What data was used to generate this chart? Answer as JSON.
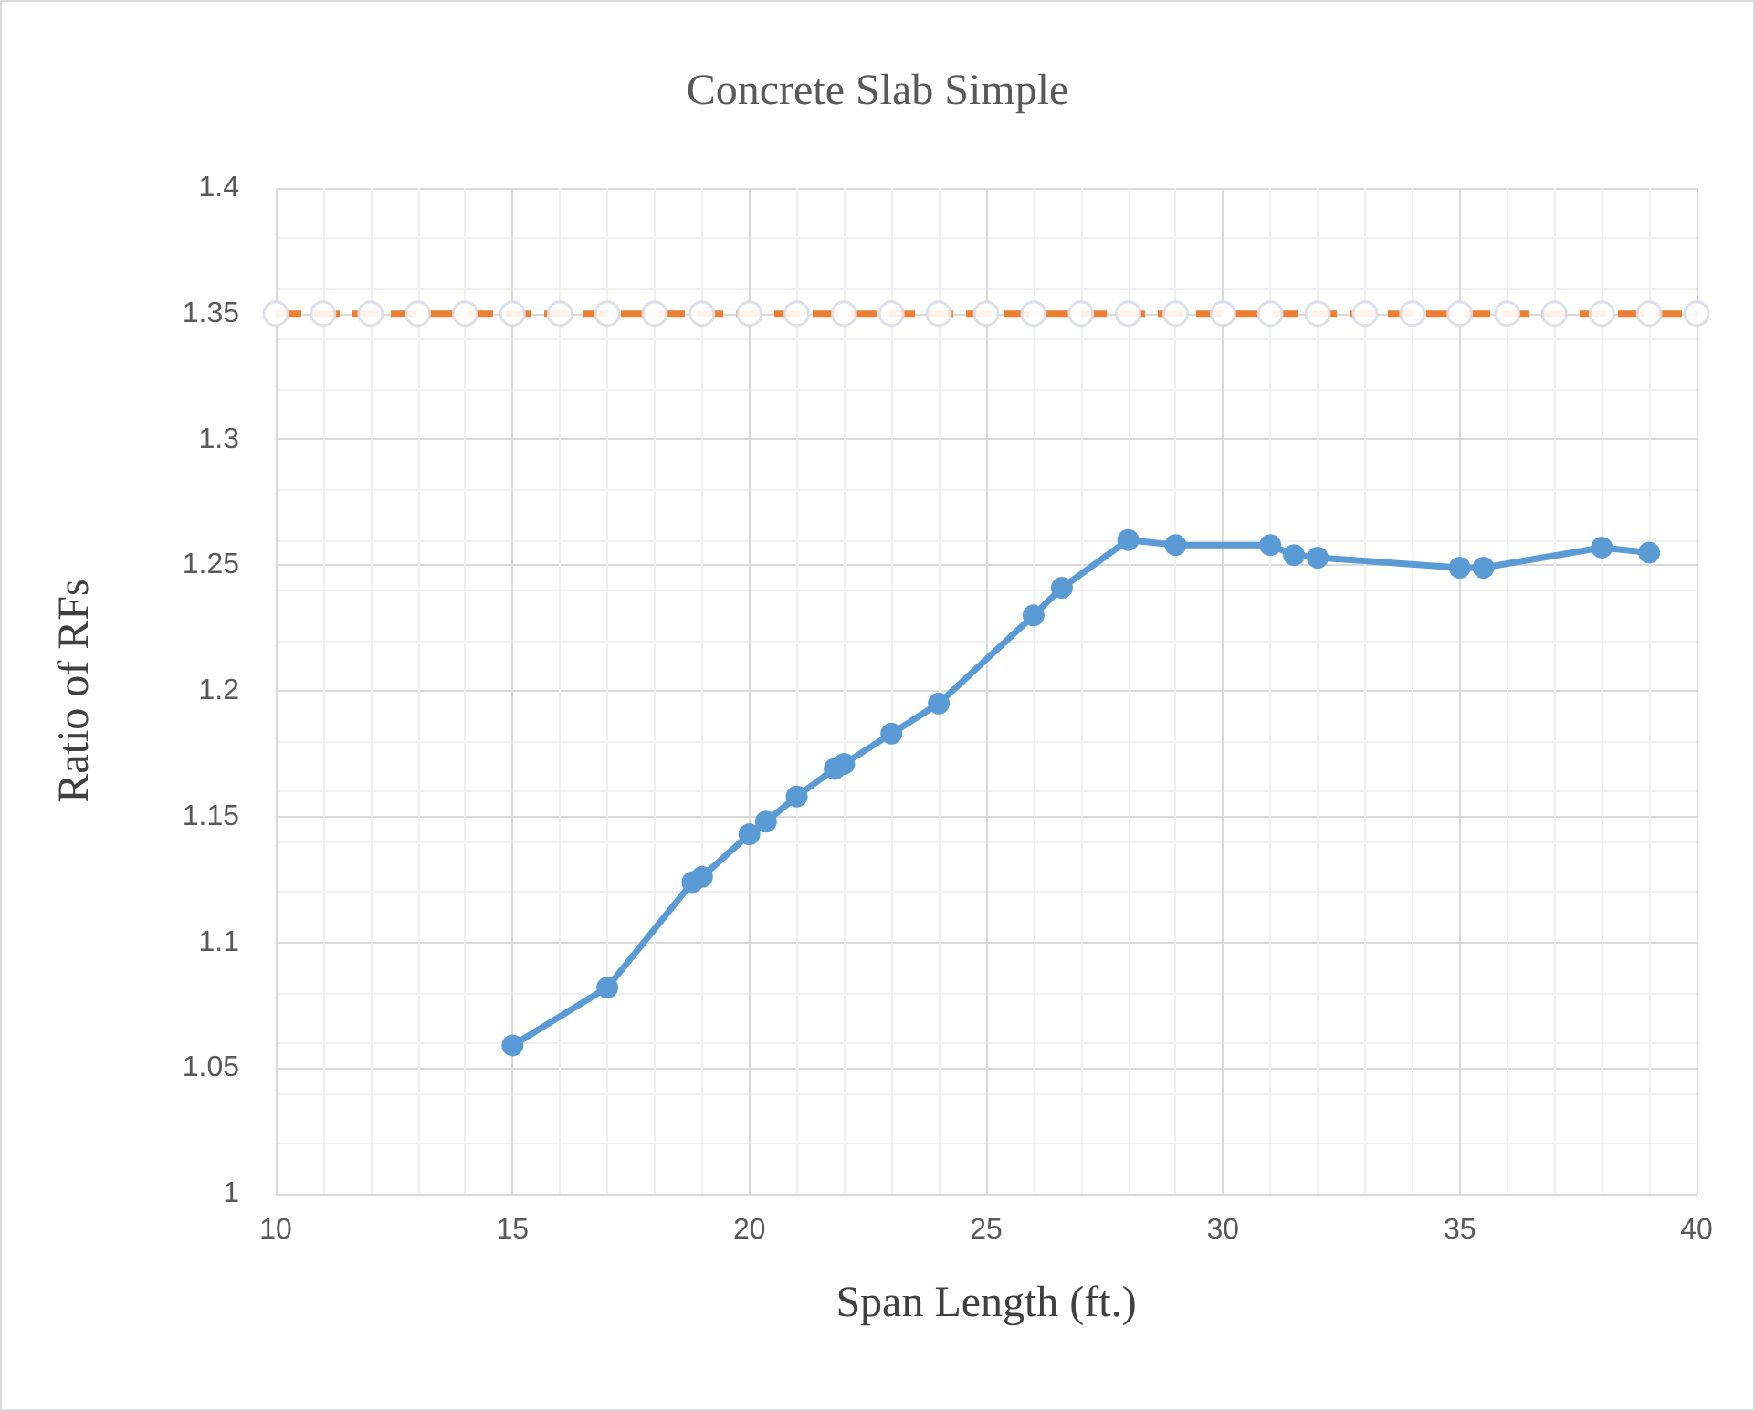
{
  "chart_data": {
    "type": "line",
    "title": "Concrete Slab Simple",
    "xlabel": "Span Length (ft.)",
    "ylabel": "Ratio of RFs",
    "xlim": [
      10,
      40
    ],
    "xticks": [
      10,
      15,
      20,
      25,
      30,
      35,
      40
    ],
    "ylim": [
      1,
      1.4
    ],
    "yticks": [
      1,
      1.05,
      1.1,
      1.15,
      1.2,
      1.25,
      1.3,
      1.35,
      1.4
    ],
    "grid": true,
    "series": [
      {
        "color": "#5b9bd5",
        "marker": "circle",
        "line_style": "solid",
        "x": [
          15,
          17,
          18.8,
          19,
          20,
          20.35,
          21,
          21.8,
          22,
          23,
          24,
          26,
          26.6,
          28,
          29,
          31,
          31.5,
          32,
          35,
          35.5,
          38,
          39
        ],
        "values": [
          1.059,
          1.082,
          1.124,
          1.126,
          1.143,
          1.148,
          1.158,
          1.169,
          1.171,
          1.183,
          1.195,
          1.23,
          1.241,
          1.26,
          1.258,
          1.258,
          1.254,
          1.253,
          1.249,
          1.249,
          1.257,
          1.255
        ]
      },
      {
        "color": "#ed7d31",
        "marker": "circle",
        "line_style": "dashed",
        "x": [
          10,
          11,
          12,
          13,
          14,
          15,
          16,
          17,
          18,
          19,
          20,
          21,
          22,
          23,
          24,
          25,
          26,
          27,
          28,
          29,
          30,
          31,
          32,
          33,
          34,
          35,
          36,
          37,
          38,
          39,
          40
        ],
        "values": [
          1.35,
          1.35,
          1.35,
          1.35,
          1.35,
          1.35,
          1.35,
          1.35,
          1.35,
          1.35,
          1.35,
          1.35,
          1.35,
          1.35,
          1.35,
          1.35,
          1.35,
          1.35,
          1.35,
          1.35,
          1.35,
          1.35,
          1.35,
          1.35,
          1.35,
          1.35,
          1.35,
          1.35,
          1.35,
          1.35,
          1.35
        ]
      }
    ]
  }
}
